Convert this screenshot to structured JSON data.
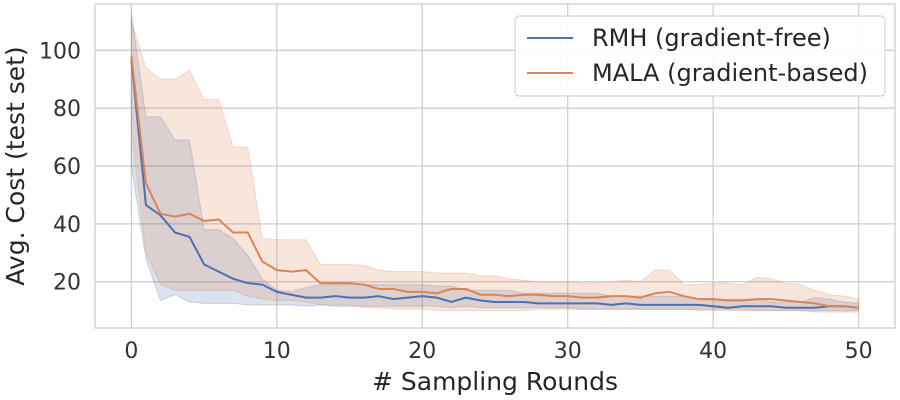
{
  "chart_data": {
    "type": "line",
    "title": "",
    "xlabel": "# Sampling Rounds",
    "ylabel": "Avg. Cost (test set)",
    "xlim": [
      -2.5,
      52.5
    ],
    "ylim": [
      4,
      116
    ],
    "xticks": [
      0,
      10,
      20,
      30,
      40,
      50
    ],
    "yticks": [
      20,
      40,
      60,
      80,
      100
    ],
    "grid": true,
    "legend_position": "top-right",
    "series": [
      {
        "name": "RMH (gradient-free)",
        "color": "#4c72b0",
        "x": [
          0,
          1,
          2,
          3,
          4,
          5,
          6,
          7,
          8,
          9,
          10,
          11,
          12,
          13,
          14,
          15,
          16,
          17,
          18,
          19,
          20,
          21,
          22,
          23,
          24,
          25,
          26,
          27,
          28,
          29,
          30,
          31,
          32,
          33,
          34,
          35,
          36,
          37,
          38,
          39,
          40,
          41,
          42,
          43,
          44,
          45,
          46,
          47,
          48,
          49,
          50
        ],
        "values": [
          97,
          46.5,
          43,
          37,
          35.5,
          26,
          23.5,
          21,
          19.5,
          19,
          16.5,
          15.5,
          14.5,
          14.5,
          15,
          14.5,
          14.5,
          15,
          14,
          14.5,
          15,
          14.5,
          13,
          14.5,
          13.5,
          13,
          13,
          13,
          12.5,
          12.5,
          12.5,
          12.5,
          12.5,
          12,
          12.5,
          12,
          12,
          12,
          12,
          12,
          11.5,
          11,
          11.5,
          11.5,
          11.5,
          11,
          11,
          11,
          11.5,
          11.5,
          11
        ],
        "lower": [
          60,
          28,
          13.5,
          15.5,
          13,
          12.5,
          12.5,
          12.5,
          12,
          12,
          12,
          12,
          11.5,
          12,
          11.5,
          11.5,
          11.5,
          11.5,
          11.5,
          11.5,
          11.5,
          11.5,
          11,
          11.5,
          11,
          11,
          11,
          11,
          11,
          11,
          11,
          10.5,
          10.5,
          10.5,
          10.5,
          10.5,
          10.5,
          10.5,
          10.5,
          10.5,
          10.5,
          10.5,
          10.5,
          10,
          10,
          10,
          10,
          10,
          10,
          10,
          10
        ],
        "upper": [
          113,
          77,
          77,
          69,
          69,
          38,
          38,
          35,
          29,
          21,
          17,
          16.5,
          18,
          19,
          19,
          19,
          19,
          19,
          19,
          19,
          19,
          18.5,
          18.5,
          17,
          17,
          17,
          17,
          16,
          16,
          16,
          16,
          16,
          16,
          15,
          15,
          15,
          15,
          15,
          15,
          14,
          14,
          14,
          14,
          14,
          13,
          13,
          13,
          14.5,
          14,
          13,
          12.5
        ]
      },
      {
        "name": "MALA (gradient-based)",
        "color": "#dd8452",
        "x": [
          0,
          1,
          2,
          3,
          4,
          5,
          6,
          7,
          8,
          9,
          10,
          11,
          12,
          13,
          14,
          15,
          16,
          17,
          18,
          19,
          20,
          21,
          22,
          23,
          24,
          25,
          26,
          27,
          28,
          29,
          30,
          31,
          32,
          33,
          34,
          35,
          36,
          37,
          38,
          39,
          40,
          41,
          42,
          43,
          44,
          45,
          46,
          47,
          48,
          49,
          50
        ],
        "values": [
          98,
          54,
          43.5,
          42.5,
          43.5,
          41,
          41.5,
          37,
          37,
          27,
          24,
          23.5,
          24,
          19.5,
          19.5,
          19.5,
          19,
          17.5,
          17.5,
          16.5,
          16.5,
          16,
          17.5,
          17.5,
          15.5,
          15.5,
          15,
          15.5,
          15.5,
          15,
          15,
          14.5,
          14.5,
          15,
          15,
          14.5,
          16,
          16.5,
          15,
          14,
          14,
          13.5,
          13.5,
          14,
          14,
          13.5,
          13,
          12.5,
          11.5,
          11.5,
          11
        ],
        "lower": [
          72,
          30,
          19,
          17,
          17,
          17,
          17,
          17,
          15,
          14,
          13.5,
          13.5,
          13,
          12,
          12,
          12,
          11,
          11,
          10.5,
          10.5,
          10.5,
          10,
          10,
          10,
          10,
          10,
          10,
          10,
          10.5,
          10.5,
          10.5,
          10.5,
          10.5,
          10.5,
          10.5,
          10.5,
          10.5,
          10.5,
          10.5,
          10,
          10,
          10,
          10,
          10,
          10,
          10,
          10,
          9.5,
          9.5,
          9.5,
          9.5
        ],
        "upper": [
          110,
          94,
          90,
          90,
          93,
          83,
          83,
          66.5,
          66.5,
          35,
          34.5,
          34.5,
          34.5,
          26,
          26,
          26,
          25.5,
          24,
          23.5,
          23.5,
          23.5,
          23,
          23,
          23,
          22,
          22,
          21,
          20.5,
          20,
          20,
          20,
          19.5,
          19.5,
          20,
          20.5,
          20,
          24,
          24,
          19,
          19,
          19.5,
          19.5,
          19,
          21.5,
          21,
          19.5,
          19,
          17,
          15.5,
          15,
          14
        ]
      }
    ]
  }
}
